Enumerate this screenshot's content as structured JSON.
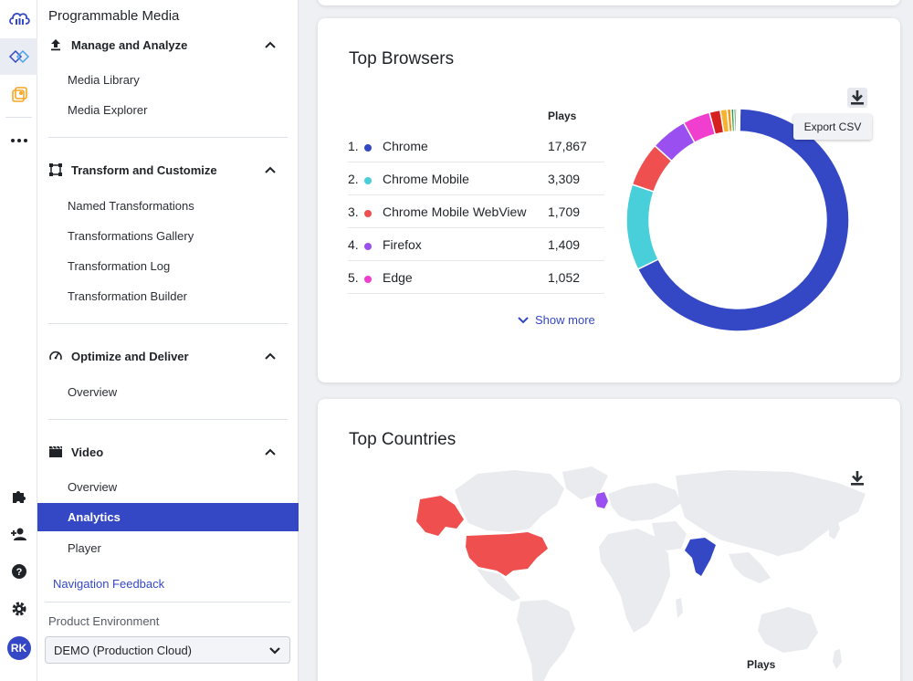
{
  "app": {
    "title": "Programmable Media"
  },
  "rail": {
    "avatar_initials": "RK"
  },
  "sidebar": {
    "sections": [
      {
        "label": "Manage and Analyze",
        "items": [
          "Media Library",
          "Media Explorer"
        ]
      },
      {
        "label": "Transform and Customize",
        "items": [
          "Named Transformations",
          "Transformations Gallery",
          "Transformation Log",
          "Transformation Builder"
        ]
      },
      {
        "label": "Optimize and Deliver",
        "items": [
          "Overview"
        ]
      },
      {
        "label": "Video",
        "items": [
          "Overview",
          "Analytics",
          "Player"
        ],
        "active_item": "Analytics"
      }
    ],
    "feedback_link": "Navigation Feedback",
    "environment_label": "Product Environment",
    "environment_value": "DEMO (Production Cloud)"
  },
  "browsers_card": {
    "title": "Top Browsers",
    "plays_header": "Plays",
    "rows": [
      {
        "rank": "1.",
        "name": "Chrome",
        "plays": "17,867",
        "color": "#3448c5"
      },
      {
        "rank": "2.",
        "name": "Chrome Mobile",
        "plays": "3,309",
        "color": "#48cfd9"
      },
      {
        "rank": "3.",
        "name": "Chrome Mobile WebView",
        "plays": "1,709",
        "color": "#f04f4f"
      },
      {
        "rank": "4.",
        "name": "Firefox",
        "plays": "1,409",
        "color": "#9a4ff0"
      },
      {
        "rank": "5.",
        "name": "Edge",
        "plays": "1,052",
        "color": "#f03fcf"
      }
    ],
    "show_more": "Show more",
    "export_tooltip": "Export CSV",
    "donut_others": [
      {
        "value": 420,
        "color": "#d62121"
      },
      {
        "value": 260,
        "color": "#f5b32f"
      },
      {
        "value": 150,
        "color": "#e89a24"
      },
      {
        "value": 110,
        "color": "#2f9e44"
      },
      {
        "value": 80,
        "color": "#1f6e3a"
      },
      {
        "value": 60,
        "color": "#3a3a3a"
      },
      {
        "value": 50,
        "color": "#7a7a7a"
      },
      {
        "value": 40,
        "color": "#444c9c"
      }
    ]
  },
  "countries_card": {
    "title": "Top Countries",
    "plays_label": "Plays",
    "highlight_colors": {
      "united_states": "#f04f4f",
      "india": "#3448c5",
      "united_kingdom": "#9a4ff0"
    }
  }
}
